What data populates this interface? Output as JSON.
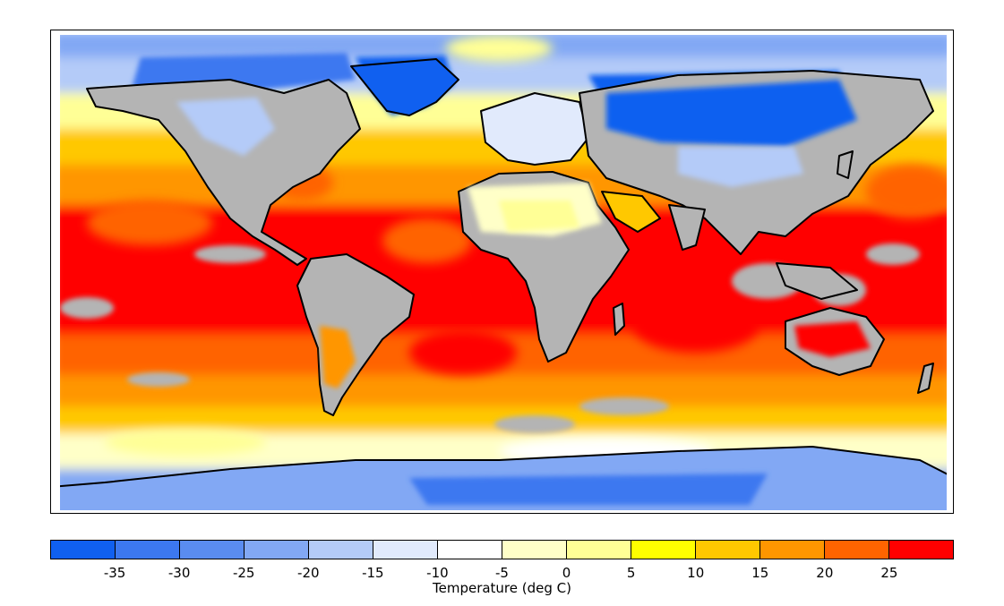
{
  "map": {
    "land_no_data_color": "#b4b4b4",
    "coastline_color": "#000000"
  },
  "colorbar": {
    "title": "Temperature (deg C)",
    "ticks": [
      "-35",
      "-30",
      "-25",
      "-20",
      "-15",
      "-10",
      "-5",
      "0",
      "5",
      "10",
      "15",
      "20",
      "25"
    ],
    "bins": [
      {
        "range": "< -35",
        "color": "#1060f0"
      },
      {
        "range": "-35 to -30",
        "color": "#3c78f0"
      },
      {
        "range": "-30 to -25",
        "color": "#5a8cf0"
      },
      {
        "range": "-25 to -20",
        "color": "#82a8f4"
      },
      {
        "range": "-20 to -15",
        "color": "#b4cbf8"
      },
      {
        "range": "-15 to -10",
        "color": "#e1eafc"
      },
      {
        "range": "-10 to -5",
        "color": "#ffffff"
      },
      {
        "range": "-5 to 0",
        "color": "#ffffc8"
      },
      {
        "range": "0 to 5",
        "color": "#ffff96"
      },
      {
        "range": "5 to 10",
        "color": "#ffff00"
      },
      {
        "range": "10 to 15",
        "color": "#ffc800"
      },
      {
        "range": "15 to 20",
        "color": "#ff9600"
      },
      {
        "range": "20 to 25",
        "color": "#ff6400"
      },
      {
        "range": "> 25",
        "color": "#ff0000"
      }
    ]
  }
}
